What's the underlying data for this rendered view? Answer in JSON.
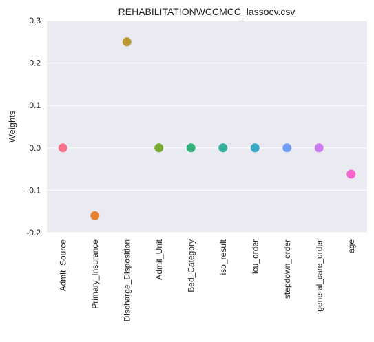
{
  "chart_data": {
    "type": "scatter",
    "title": "REHABILITATIONWCCMCC_lassocv.csv",
    "xlabel": "",
    "ylabel": "Weights",
    "categories": [
      "Admit_Source",
      "Primary_Insurance",
      "Discharge_Disposition",
      "Admit_Unit",
      "Bed_Category",
      "iso_result",
      "icu_order",
      "stepdown_order",
      "general_care_order",
      "age"
    ],
    "values": [
      0.0,
      -0.16,
      0.25,
      0.0,
      0.0,
      0.0,
      0.0,
      0.0,
      0.0,
      -0.062
    ],
    "colors": [
      "#f77189",
      "#e68332",
      "#bb9832",
      "#77a931",
      "#33b07a",
      "#35ad9c",
      "#38a9c5",
      "#6e9bf4",
      "#cc79f4",
      "#f565cc"
    ],
    "ylim": [
      -0.2,
      0.3
    ],
    "yticks": [
      "-0.2",
      "-0.1",
      "0.0",
      "0.1",
      "0.2",
      "0.3"
    ],
    "grid": true,
    "plot_background": "#eaeaf2"
  }
}
